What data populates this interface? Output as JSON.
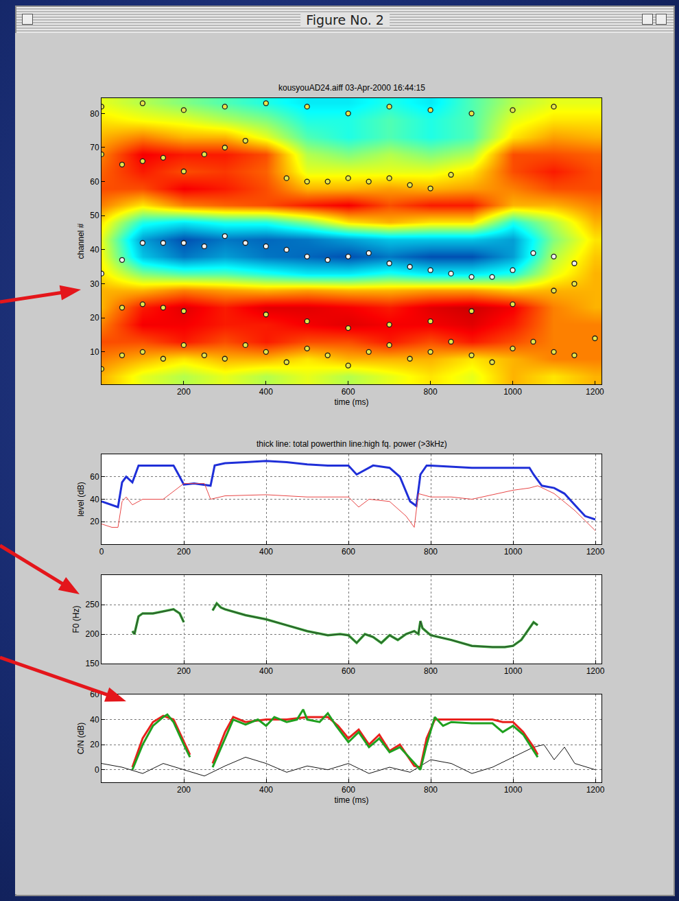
{
  "window": {
    "title": "Figure No. 2"
  },
  "chart_data": [
    {
      "type": "heatmap",
      "title": "kousyouAD24.aiff 03-Apr-2000 16:44:15",
      "x_label": "time (ms)",
      "y_label": "channel #",
      "xlim": [
        0,
        1216
      ],
      "xticks": [
        200,
        400,
        600,
        800,
        1000,
        1200
      ],
      "ylim": [
        0.5,
        84.5
      ],
      "yticks": [
        10,
        20,
        30,
        40,
        50,
        60,
        70,
        80
      ],
      "zlim": [
        0,
        1
      ],
      "x": [
        0,
        100,
        200,
        300,
        400,
        500,
        600,
        700,
        800,
        900,
        1000,
        1100,
        1200
      ],
      "y": [
        3,
        8,
        13,
        18,
        23,
        28,
        33,
        38,
        43,
        48,
        53,
        58,
        63,
        68,
        73,
        78,
        83
      ],
      "z": [
        [
          0.7,
          0.6,
          0.55,
          0.6,
          0.55,
          0.6,
          0.55,
          0.6,
          0.65,
          0.6,
          0.7,
          0.65,
          0.7
        ],
        [
          0.75,
          0.7,
          0.65,
          0.7,
          0.7,
          0.65,
          0.7,
          0.7,
          0.7,
          0.65,
          0.7,
          0.75,
          0.75
        ],
        [
          0.8,
          0.8,
          0.85,
          0.8,
          0.85,
          0.8,
          0.8,
          0.85,
          0.8,
          0.85,
          0.8,
          0.75,
          0.75
        ],
        [
          0.75,
          0.88,
          0.88,
          0.85,
          0.85,
          0.88,
          0.9,
          0.88,
          0.88,
          0.9,
          0.85,
          0.75,
          0.75
        ],
        [
          0.7,
          0.85,
          0.9,
          0.85,
          0.9,
          0.9,
          0.88,
          0.85,
          0.9,
          0.92,
          0.88,
          0.75,
          0.7
        ],
        [
          0.7,
          0.7,
          0.75,
          0.72,
          0.7,
          0.72,
          0.7,
          0.7,
          0.72,
          0.72,
          0.68,
          0.7,
          0.7
        ],
        [
          0.65,
          0.5,
          0.45,
          0.45,
          0.4,
          0.35,
          0.35,
          0.4,
          0.35,
          0.35,
          0.4,
          0.6,
          0.7
        ],
        [
          0.62,
          0.3,
          0.2,
          0.25,
          0.2,
          0.18,
          0.15,
          0.2,
          0.15,
          0.15,
          0.25,
          0.55,
          0.68
        ],
        [
          0.6,
          0.25,
          0.15,
          0.2,
          0.18,
          0.2,
          0.25,
          0.3,
          0.3,
          0.3,
          0.25,
          0.5,
          0.65
        ],
        [
          0.65,
          0.4,
          0.35,
          0.4,
          0.4,
          0.5,
          0.65,
          0.7,
          0.65,
          0.65,
          0.4,
          0.55,
          0.7
        ],
        [
          0.75,
          0.65,
          0.75,
          0.78,
          0.8,
          0.85,
          0.88,
          0.8,
          0.85,
          0.85,
          0.7,
          0.7,
          0.75
        ],
        [
          0.8,
          0.8,
          0.88,
          0.85,
          0.8,
          0.7,
          0.7,
          0.72,
          0.7,
          0.72,
          0.75,
          0.8,
          0.8
        ],
        [
          0.78,
          0.85,
          0.8,
          0.82,
          0.78,
          0.6,
          0.6,
          0.6,
          0.6,
          0.65,
          0.8,
          0.85,
          0.8
        ],
        [
          0.75,
          0.88,
          0.85,
          0.85,
          0.8,
          0.55,
          0.5,
          0.55,
          0.5,
          0.55,
          0.8,
          0.8,
          0.78
        ],
        [
          0.7,
          0.75,
          0.7,
          0.7,
          0.6,
          0.45,
          0.4,
          0.45,
          0.4,
          0.45,
          0.65,
          0.72,
          0.7
        ],
        [
          0.65,
          0.62,
          0.6,
          0.55,
          0.5,
          0.4,
          0.4,
          0.45,
          0.4,
          0.45,
          0.6,
          0.65,
          0.65
        ],
        [
          0.6,
          0.55,
          0.5,
          0.45,
          0.4,
          0.35,
          0.35,
          0.4,
          0.35,
          0.45,
          0.55,
          0.6,
          0.6
        ]
      ],
      "series": [
        {
          "type": "scatter",
          "marker": "circle",
          "color": "#f2f2f2",
          "x": [
            0,
            50,
            100,
            150,
            200,
            250,
            300,
            350,
            400,
            450,
            500,
            550,
            600,
            650,
            700,
            750,
            800,
            850,
            900,
            950,
            1000,
            1050,
            1100,
            1150
          ],
          "values": [
            33,
            37,
            42,
            42,
            42,
            41,
            44,
            42,
            41,
            40,
            38,
            37,
            38,
            39,
            36,
            35,
            34,
            33,
            32,
            32,
            34,
            39,
            38,
            36
          ]
        },
        {
          "type": "scatter",
          "marker": "circle",
          "color": "#e6e64a",
          "x": [
            450,
            500,
            550,
            600,
            650,
            700,
            750,
            800,
            850
          ],
          "values": [
            61,
            60,
            60,
            61,
            60,
            61,
            59,
            58,
            62
          ]
        },
        {
          "type": "scatter",
          "marker": "circle",
          "color": "#e6e64a",
          "x": [
            0,
            50,
            100,
            150,
            200,
            250,
            300,
            350,
            400,
            450,
            500,
            550,
            600,
            650,
            700,
            750,
            800,
            850,
            900,
            950,
            1000,
            1050,
            1100,
            1150,
            1200
          ],
          "values": [
            5,
            9,
            10,
            8,
            12,
            9,
            8,
            12,
            10,
            7,
            11,
            9,
            6,
            10,
            12,
            8,
            10,
            13,
            9,
            7,
            11,
            13,
            10,
            9,
            14
          ]
        },
        {
          "type": "scatter",
          "marker": "circle",
          "color": "#e6e64a",
          "x": [
            0,
            50,
            100,
            150,
            200,
            250,
            300,
            350
          ],
          "values": [
            68,
            65,
            66,
            67,
            63,
            68,
            70,
            72
          ]
        },
        {
          "type": "scatter",
          "marker": "circle",
          "color": "#e6e64a",
          "x": [
            0,
            100,
            200,
            300,
            400,
            500,
            600,
            700,
            800,
            900,
            1000,
            1100
          ],
          "values": [
            82,
            83,
            81,
            82,
            83,
            82,
            80,
            82,
            81,
            80,
            81,
            82
          ]
        },
        {
          "type": "scatter",
          "marker": "circle",
          "color": "#e6e64a",
          "x": [
            50,
            100,
            150,
            200,
            400,
            500,
            600,
            700,
            800,
            900,
            1000,
            1100,
            1150
          ],
          "values": [
            23,
            24,
            23,
            22,
            21,
            19,
            17,
            18,
            19,
            22,
            24,
            28,
            30
          ]
        }
      ]
    },
    {
      "type": "line",
      "title": "thick line: total powerthin line:high fq. power (>3kHz)",
      "y_label": "level (dB)",
      "xlim": [
        0,
        1215
      ],
      "xticks": [
        0,
        200,
        400,
        600,
        800,
        1000,
        1200
      ],
      "ylim": [
        0,
        80
      ],
      "yticks": [
        20,
        40,
        60
      ],
      "grid": true,
      "series": [
        {
          "color": "#1f2fd8",
          "line_style": "thick",
          "x": [
            0,
            25,
            40,
            50,
            60,
            75,
            90,
            100,
            150,
            175,
            190,
            200,
            225,
            250,
            265,
            275,
            300,
            350,
            400,
            450,
            500,
            550,
            600,
            620,
            640,
            660,
            700,
            725,
            750,
            765,
            775,
            790,
            800,
            850,
            900,
            950,
            1000,
            1040,
            1050,
            1070,
            1100,
            1125,
            1150,
            1175,
            1200
          ],
          "values": [
            38,
            35,
            33,
            55,
            60,
            55,
            70,
            70,
            70,
            70,
            60,
            53,
            54,
            53,
            52,
            70,
            72,
            73,
            74,
            73,
            71,
            70,
            70,
            62,
            66,
            70,
            68,
            60,
            38,
            34,
            62,
            70,
            70,
            69,
            68,
            68,
            68,
            68,
            62,
            52,
            50,
            45,
            35,
            25,
            22
          ]
        },
        {
          "color": "#e84545",
          "line_style": "thin",
          "x": [
            0,
            25,
            40,
            50,
            60,
            75,
            100,
            150,
            200,
            250,
            265,
            300,
            400,
            500,
            550,
            600,
            625,
            650,
            700,
            740,
            760,
            770,
            800,
            850,
            900,
            950,
            1000,
            1040,
            1060,
            1100,
            1150,
            1200
          ],
          "values": [
            18,
            15,
            15,
            38,
            42,
            35,
            40,
            40,
            54,
            54,
            40,
            43,
            44,
            42,
            42,
            42,
            33,
            40,
            38,
            25,
            15,
            45,
            42,
            42,
            40,
            44,
            48,
            50,
            52,
            45,
            30,
            12
          ]
        }
      ]
    },
    {
      "type": "line",
      "y_label": "F0 (Hz)",
      "xlim": [
        0,
        1215
      ],
      "xticks": [
        200,
        400,
        600,
        800,
        1000,
        1200
      ],
      "ylim": [
        150,
        300
      ],
      "yticks": [
        150,
        200,
        250
      ],
      "grid": true,
      "series": [
        {
          "color": "#2fa02f",
          "line_style": "solid",
          "x": [
            75,
            80,
            90,
            100,
            125,
            150,
            175,
            190,
            200,
            235,
            270,
            280,
            290,
            300,
            350,
            400,
            450,
            500,
            550,
            580,
            600,
            620,
            640,
            660,
            680,
            700,
            720,
            740,
            760,
            770,
            775,
            780,
            800,
            850,
            900,
            950,
            980,
            1000,
            1020,
            1040,
            1050,
            1060
          ],
          "values": [
            205,
            200,
            230,
            235,
            235,
            238,
            242,
            235,
            220,
            null,
            240,
            252,
            245,
            242,
            232,
            225,
            215,
            205,
            198,
            200,
            198,
            185,
            200,
            195,
            185,
            198,
            190,
            200,
            205,
            200,
            222,
            210,
            198,
            190,
            180,
            178,
            178,
            180,
            190,
            210,
            220,
            215
          ]
        }
      ]
    },
    {
      "type": "line",
      "x_label": "time (ms)",
      "y_label": "C/N (dB)",
      "xlim": [
        0,
        1215
      ],
      "xticks": [
        200,
        400,
        600,
        800,
        1000,
        1200
      ],
      "ylim": [
        -10,
        60
      ],
      "yticks": [
        0,
        20,
        40,
        60
      ],
      "grid": true,
      "series": [
        {
          "color": "#111111",
          "line_style": "thin",
          "x": [
            0,
            50,
            100,
            150,
            200,
            250,
            300,
            350,
            400,
            450,
            500,
            550,
            600,
            650,
            700,
            750,
            800,
            850,
            900,
            950,
            1000,
            1050,
            1075,
            1100,
            1125,
            1150,
            1200
          ],
          "values": [
            5,
            2,
            -3,
            5,
            0,
            -5,
            3,
            10,
            5,
            -2,
            3,
            0,
            5,
            -3,
            2,
            -2,
            8,
            5,
            -3,
            2,
            10,
            18,
            20,
            8,
            18,
            5,
            0
          ]
        },
        {
          "color": "#e8201c",
          "line_style": "thick",
          "x": [
            75,
            100,
            125,
            150,
            175,
            200,
            215,
            240,
            270,
            300,
            320,
            350,
            400,
            450,
            500,
            550,
            575,
            600,
            625,
            650,
            675,
            700,
            725,
            760,
            775,
            790,
            810,
            850,
            900,
            950,
            975,
            1000,
            1025,
            1050,
            1060
          ],
          "values": [
            2,
            25,
            38,
            43,
            40,
            22,
            12,
            null,
            5,
            30,
            42,
            38,
            40,
            40,
            42,
            42,
            35,
            25,
            32,
            20,
            28,
            15,
            20,
            3,
            2,
            25,
            40,
            40,
            40,
            40,
            38,
            38,
            30,
            18,
            12
          ]
        },
        {
          "color": "#1fa01f",
          "line_style": "thick",
          "x": [
            75,
            100,
            125,
            150,
            160,
            175,
            200,
            215,
            240,
            270,
            300,
            320,
            350,
            380,
            400,
            420,
            450,
            475,
            490,
            500,
            530,
            550,
            570,
            600,
            625,
            650,
            675,
            700,
            725,
            760,
            775,
            790,
            810,
            830,
            850,
            900,
            950,
            975,
            1000,
            1025,
            1050,
            1060
          ],
          "values": [
            0,
            20,
            35,
            42,
            44,
            38,
            20,
            10,
            null,
            2,
            25,
            40,
            36,
            40,
            35,
            42,
            38,
            40,
            48,
            40,
            38,
            45,
            35,
            22,
            30,
            18,
            25,
            14,
            18,
            5,
            0,
            20,
            42,
            35,
            38,
            37,
            37,
            30,
            35,
            28,
            15,
            10
          ]
        }
      ]
    }
  ]
}
